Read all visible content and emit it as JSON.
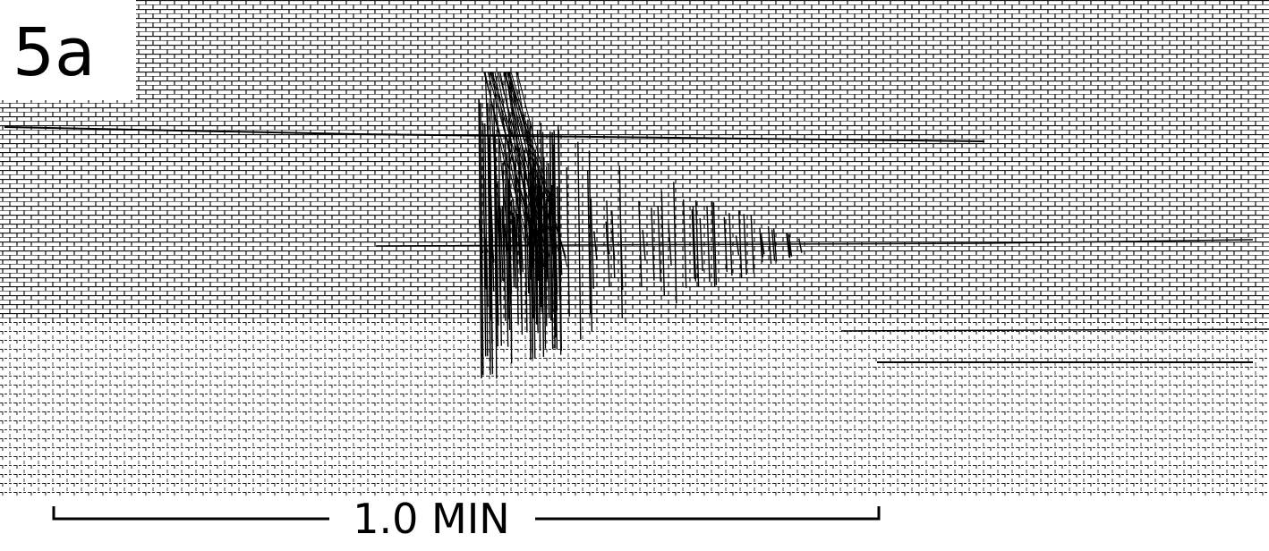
{
  "panel_label": "5a",
  "scale_bar": {
    "label": "1.0 MIN"
  }
}
